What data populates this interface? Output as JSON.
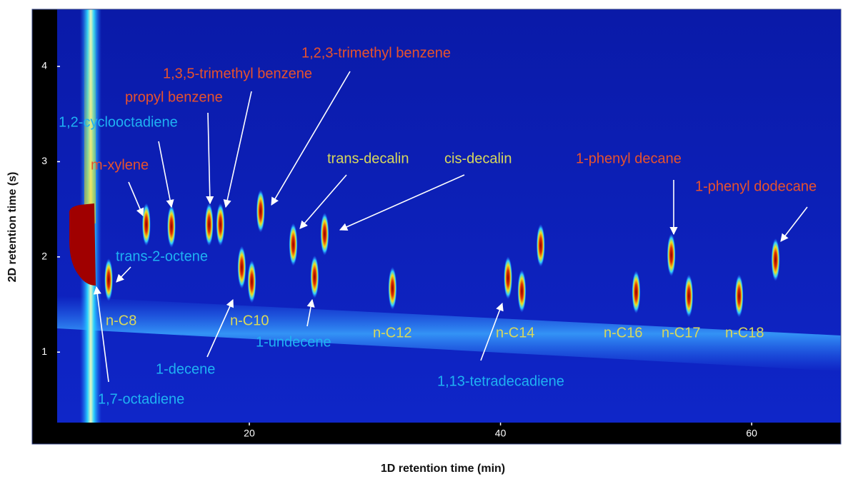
{
  "chart_data": {
    "type": "scatter",
    "x_label": "1D retention time (min)",
    "y_label": "2D retention time (s)",
    "xlim": [
      4.7,
      67.1
    ],
    "ylim": [
      0.26,
      4.6
    ],
    "xticks": [
      20,
      40,
      60
    ],
    "yticks": [
      1,
      2,
      3,
      4
    ],
    "x": [
      8.8,
      11.8,
      13.8,
      16.8,
      17.7,
      19.4,
      20.2,
      20.9,
      23.5,
      25.2,
      26.0,
      31.4,
      40.6,
      41.7,
      43.2,
      50.8,
      53.6,
      55.0,
      59.0,
      61.9
    ],
    "values": [
      1.76,
      2.34,
      2.32,
      2.34,
      2.34,
      1.89,
      1.74,
      2.48,
      2.13,
      1.79,
      2.24,
      1.67,
      1.78,
      1.64,
      2.12,
      1.63,
      2.02,
      1.59,
      1.59,
      1.97
    ],
    "annotations": [
      {
        "text": "m-xylene",
        "color": "#e8522c"
      },
      {
        "text": "1,2-cyclooctadiene",
        "color": "#1fb2f2"
      },
      {
        "text": "propyl benzene",
        "color": "#e8522c"
      },
      {
        "text": "1,3,5-trimethyl benzene",
        "color": "#e8522c"
      },
      {
        "text": "1,2,3-trimethyl benzene",
        "color": "#e8522c"
      },
      {
        "text": "trans-decalin",
        "color": "#d8d85c"
      },
      {
        "text": "cis-decalin",
        "color": "#d8d85c"
      },
      {
        "text": "1-phenyl decane",
        "color": "#e8522c"
      },
      {
        "text": "1-phenyl dodecane",
        "color": "#e8522c"
      },
      {
        "text": "trans-2-octene",
        "color": "#1fb2f2"
      },
      {
        "text": "n-C8",
        "color": "#d8d85c"
      },
      {
        "text": "1,7-octadiene",
        "color": "#1fb2f2"
      },
      {
        "text": "1-decene",
        "color": "#1fb2f2"
      },
      {
        "text": "n-C10",
        "color": "#d8d85c"
      },
      {
        "text": "1-undecene",
        "color": "#1fb2f2"
      },
      {
        "text": "n-C12",
        "color": "#d8d85c"
      },
      {
        "text": "n-C14",
        "color": "#d8d85c"
      },
      {
        "text": "1,13-tetradecadiene",
        "color": "#1fb2f2"
      },
      {
        "text": "n-C16",
        "color": "#d8d85c"
      },
      {
        "text": "n-C17",
        "color": "#d8d85c"
      },
      {
        "text": "n-C18",
        "color": "#d8d85c"
      }
    ]
  }
}
